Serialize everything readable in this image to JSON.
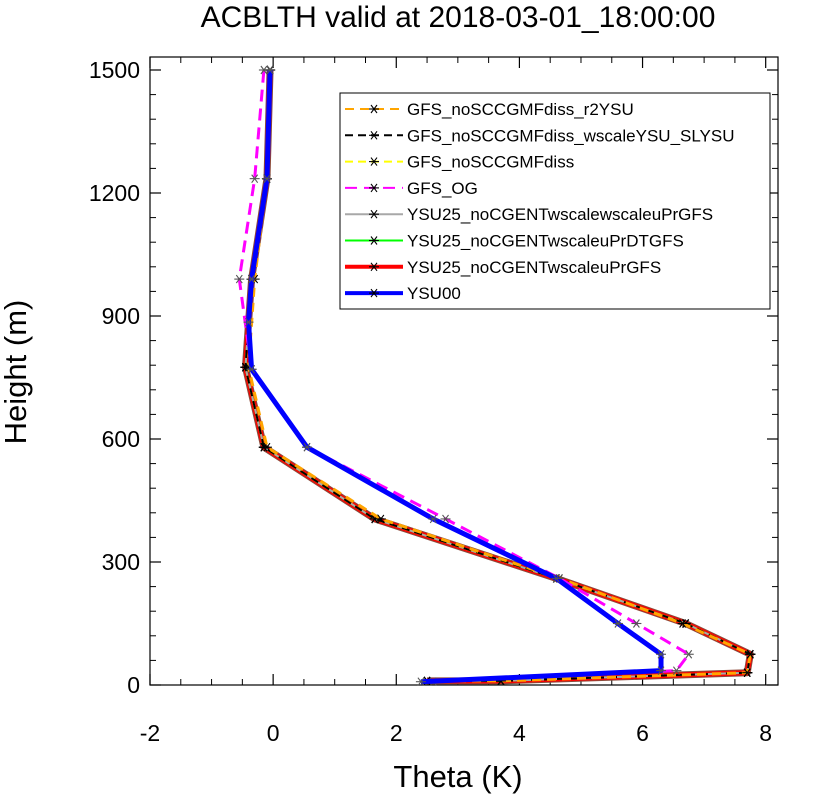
{
  "chart_data": {
    "type": "line",
    "title": "ACBLTH valid at 2018-03-01_18:00:00",
    "xlabel": "Theta (K)",
    "ylabel": "Height (m)",
    "xlim": [
      -2,
      8.2
    ],
    "ylim": [
      0,
      1500
    ],
    "xticks": [
      -2,
      0,
      2,
      4,
      6,
      8
    ],
    "yticks": [
      0,
      300,
      600,
      900,
      1200,
      1500
    ],
    "grid": false,
    "legend_position": "top-right",
    "series": [
      {
        "name": "YSU25_noCGENTwscaleuPrGFS",
        "color": "#ff0000",
        "width": 5,
        "dash": "",
        "marker": "asterisk",
        "x": [
          2.5,
          3.7,
          7.7,
          7.75,
          6.7,
          4.6,
          1.65,
          -0.15,
          -0.45,
          -0.35,
          -0.1,
          -0.05
        ],
        "y": [
          10,
          10,
          30,
          75,
          150,
          260,
          405,
          580,
          775,
          990,
          1235,
          1500
        ]
      },
      {
        "name": "YSU25_noCGENTwscaleuPrDTGFS",
        "color": "#00ff00",
        "width": 2,
        "dash": "",
        "marker": "asterisk",
        "x": [
          2.5,
          3.7,
          7.7,
          7.75,
          6.7,
          4.6,
          1.65,
          -0.15,
          -0.45,
          -0.35,
          -0.1,
          -0.05
        ],
        "y": [
          10,
          10,
          30,
          75,
          150,
          260,
          405,
          580,
          775,
          990,
          1235,
          1500
        ]
      },
      {
        "name": "YSU25_noCGENTwscalewscaleuPrGFS",
        "color": "#a8a8a8",
        "width": 2,
        "dash": "",
        "marker": "asterisk",
        "x": [
          2.5,
          3.7,
          7.7,
          7.75,
          6.7,
          4.6,
          1.65,
          -0.15,
          -0.45,
          -0.35,
          -0.1,
          -0.05
        ],
        "y": [
          10,
          10,
          30,
          75,
          150,
          260,
          405,
          580,
          775,
          990,
          1235,
          1500
        ]
      },
      {
        "name": "GFS_noSCCGMFdiss",
        "color": "#ffff00",
        "width": 2,
        "dash": "8,5",
        "marker": "asterisk",
        "x": [
          2.5,
          3.7,
          7.7,
          7.75,
          6.7,
          4.6,
          1.65,
          -0.15,
          -0.45,
          -0.35,
          -0.1,
          -0.05
        ],
        "y": [
          10,
          10,
          30,
          75,
          150,
          260,
          405,
          580,
          775,
          990,
          1235,
          1500
        ]
      },
      {
        "name": "GFS_noSCCGMFdiss_wscaleYSU_SLYSU",
        "color": "#000000",
        "width": 2,
        "dash": "8,5",
        "marker": "asterisk",
        "x": [
          2.5,
          3.7,
          7.7,
          7.75,
          6.7,
          4.6,
          1.65,
          -0.15,
          -0.45,
          -0.35,
          -0.1,
          -0.05
        ],
        "y": [
          10,
          10,
          30,
          75,
          150,
          260,
          405,
          580,
          775,
          990,
          1235,
          1500
        ]
      },
      {
        "name": "GFS_noSCCGMFdiss_r2YSU",
        "color": "#ffa500",
        "width": 3,
        "dash": "9,6",
        "marker": "asterisk",
        "x": [
          2.5,
          3.7,
          7.7,
          7.75,
          6.65,
          4.65,
          1.75,
          -0.1,
          -0.4,
          -0.3,
          -0.1,
          -0.05
        ],
        "y": [
          10,
          10,
          30,
          75,
          150,
          260,
          405,
          580,
          775,
          990,
          1235,
          1500
        ]
      },
      {
        "name": "GFS_OG",
        "color": "#ff00ff",
        "width": 3,
        "dash": "12,7",
        "marker": "asterisk",
        "x": [
          2.6,
          6.55,
          6.75,
          5.9,
          4.65,
          2.8,
          0.55,
          -0.35,
          -0.55,
          -0.3,
          -0.15
        ],
        "y": [
          8,
          35,
          75,
          150,
          260,
          405,
          580,
          770,
          990,
          1235,
          1500
        ]
      },
      {
        "name": "YSU00",
        "color": "#0000ff",
        "width": 5,
        "dash": "",
        "marker": "asterisk",
        "x": [
          2.4,
          6.3,
          6.3,
          5.6,
          4.6,
          2.6,
          0.55,
          -0.35,
          -0.4,
          -0.35,
          -0.1,
          -0.05
        ],
        "y": [
          8,
          35,
          75,
          150,
          260,
          405,
          580,
          770,
          885,
          990,
          1235,
          1500
        ]
      }
    ]
  }
}
